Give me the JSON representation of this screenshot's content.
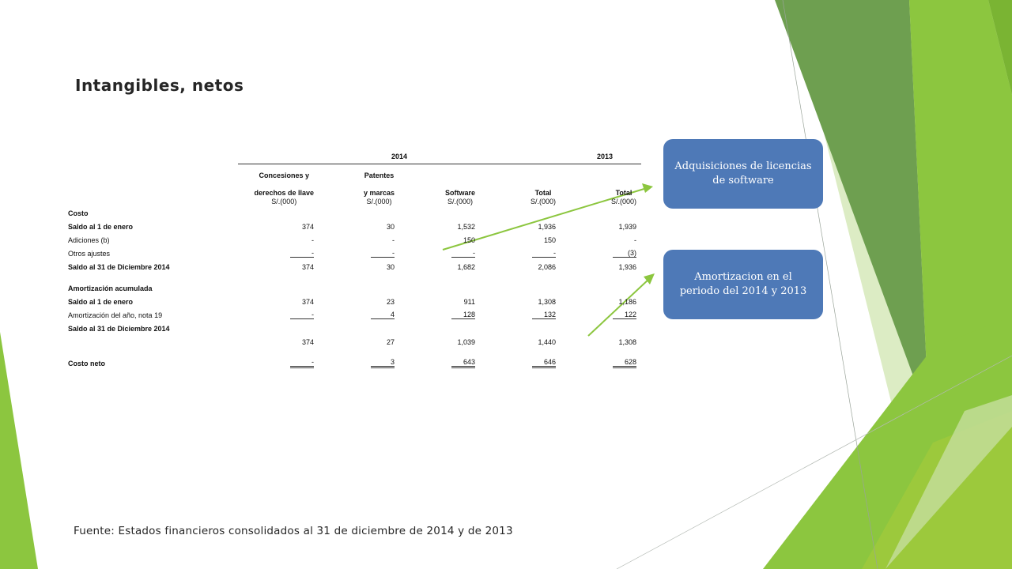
{
  "slide": {
    "title": "Intangibles, netos",
    "source": "Fuente: Estados financieros consolidados al 31 de diciembre de 2014 y de 2013"
  },
  "table": {
    "groups": [
      "2014",
      "2013"
    ],
    "columns": [
      {
        "line1": "Concesiones y",
        "line2": "derechos de llave",
        "unit": "S/.(000)"
      },
      {
        "line1": "Patentes",
        "line2": "y marcas",
        "unit": "S/.(000)"
      },
      {
        "line1": "",
        "line2": "Software",
        "unit": "S/.(000)"
      },
      {
        "line1": "",
        "line2": "Total",
        "unit": "S/.(000)"
      },
      {
        "line1": "",
        "line2": "Total",
        "unit": "S/.(000)"
      }
    ],
    "rows": [
      {
        "label": "Costo",
        "values": [
          "",
          "",
          "",
          "",
          ""
        ]
      },
      {
        "label": "Saldo al 1 de enero",
        "values": [
          "374",
          "30",
          "1,532",
          "1,936",
          "1,939"
        ]
      },
      {
        "label": "Adiciones (b)",
        "values": [
          "-",
          "-",
          "150",
          "150",
          "-"
        ]
      },
      {
        "label": "Otros ajustes",
        "values": [
          "-",
          "-",
          "-",
          "-",
          "(3)"
        ]
      },
      {
        "label": "Saldo al 31 de Diciembre 2014",
        "values": [
          "374",
          "30",
          "1,682",
          "2,086",
          "1,936"
        ]
      },
      {
        "label": "Amortización acumulada",
        "values": [
          "",
          "",
          "",
          "",
          ""
        ]
      },
      {
        "label": "Saldo al 1 de enero",
        "values": [
          "374",
          "23",
          "911",
          "1,308",
          "1,186"
        ]
      },
      {
        "label": "Amortización del año, nota 19",
        "values": [
          "-",
          "4",
          "128",
          "132",
          "122"
        ]
      },
      {
        "label": "Saldo al 31 de Diciembre 2014",
        "values": [
          "",
          "",
          "",
          "",
          ""
        ]
      },
      {
        "label": "",
        "values": [
          "374",
          "27",
          "1,039",
          "1,440",
          "1,308"
        ]
      },
      {
        "label": "Costo neto",
        "values": [
          "-",
          "3",
          "643",
          "646",
          "628"
        ]
      }
    ]
  },
  "callouts": {
    "box1": "Adquisiciones de licencias de software",
    "box2": "Amortizacion en el periodo del 2014 y 2013"
  },
  "colors": {
    "accent_green": "#8cc63f",
    "dark_green": "#6a9a4a",
    "box_blue": "#4e79b7"
  }
}
